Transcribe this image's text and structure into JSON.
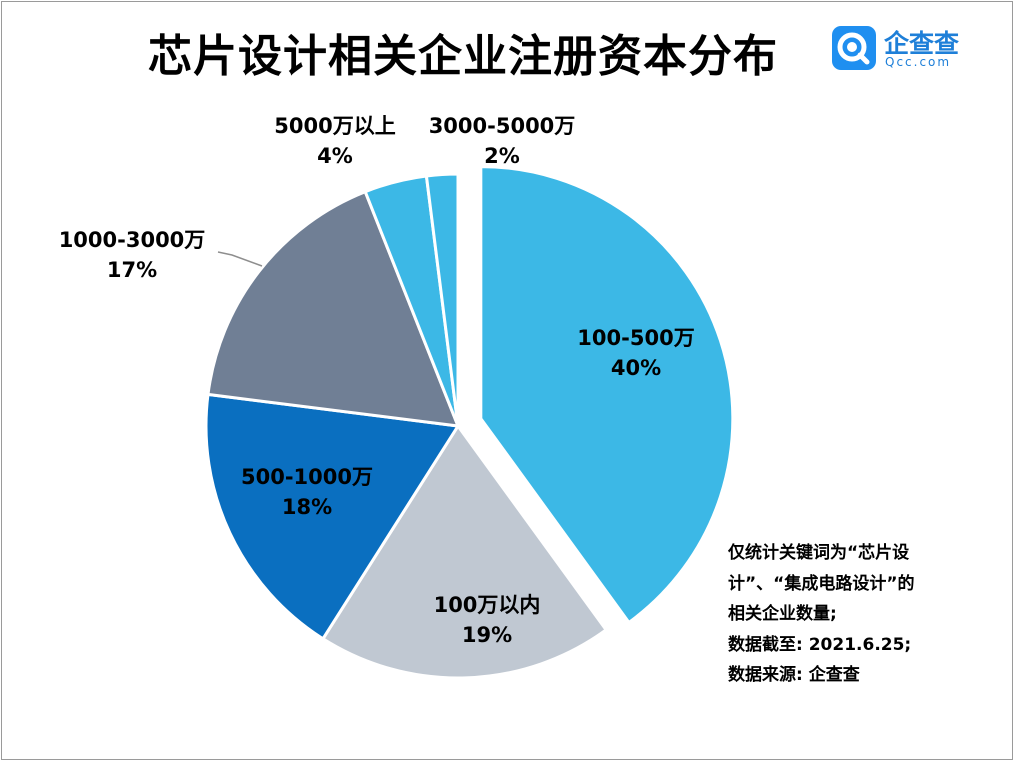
{
  "title": "芯片设计相关企业注册资本分布",
  "logo": {
    "name": "企查查",
    "domain": "Qcc.com",
    "icon": "qcc-logo-icon",
    "color": "#1f8ff0"
  },
  "chart_data": {
    "type": "pie",
    "title": "芯片设计相关企业注册资本分布",
    "slices": [
      {
        "label": "100-500万",
        "value": 40,
        "pct_text": "40%",
        "color": "#3cb8e6",
        "exploded": true
      },
      {
        "label": "100万以内",
        "value": 19,
        "pct_text": "19%",
        "color": "#c0c8d2"
      },
      {
        "label": "500-1000万",
        "value": 18,
        "pct_text": "18%",
        "color": "#0a6fc0"
      },
      {
        "label": "1000-3000万",
        "value": 17,
        "pct_text": "17%",
        "color": "#707f95"
      },
      {
        "label": "5000万以上",
        "value": 4,
        "pct_text": "4%",
        "color": "#3cb8e6"
      },
      {
        "label": "3000-5000万",
        "value": 2,
        "pct_text": "2%",
        "color": "#3cb8e6"
      }
    ]
  },
  "notes": [
    "仅统计关键词为“芯片设",
    "计”、“集成电路设计”的",
    "相关企业数量;",
    "数据截至: 2021.6.25;",
    "数据来源: 企查查"
  ]
}
